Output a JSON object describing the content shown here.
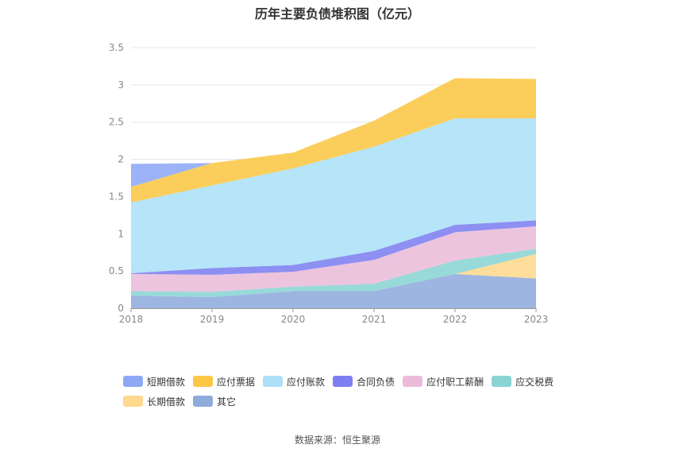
{
  "chart_data": {
    "type": "area",
    "stacked": true,
    "title": "历年主要负债堆积图（亿元）",
    "x": [
      "2018",
      "2019",
      "2020",
      "2021",
      "2022",
      "2023"
    ],
    "ylim": [
      0,
      3.5
    ],
    "yticks": [
      "0",
      "0.5",
      "1",
      "1.5",
      "2",
      "2.5",
      "3",
      "3.5"
    ],
    "grid": true,
    "legend_position": "bottom",
    "series": [
      {
        "name": "其它",
        "color": "#8fabdc",
        "values": [
          0.17,
          0.15,
          0.23,
          0.23,
          0.46,
          0.4
        ]
      },
      {
        "name": "长期借款",
        "color": "#ffd98e",
        "values": [
          0,
          0,
          0,
          0,
          0,
          0.33
        ]
      },
      {
        "name": "应交税费",
        "color": "#8ad4d4",
        "values": [
          0.06,
          0.07,
          0.06,
          0.1,
          0.18,
          0.07
        ]
      },
      {
        "name": "应付职工薪酬",
        "color": "#ebbcd9",
        "values": [
          0.23,
          0.23,
          0.2,
          0.32,
          0.38,
          0.3
        ]
      },
      {
        "name": "合同负债",
        "color": "#7d7ff0",
        "values": [
          0.01,
          0.09,
          0.09,
          0.12,
          0.1,
          0.08
        ]
      },
      {
        "name": "应付账款",
        "color": "#ace0f8",
        "values": [
          0.95,
          1.11,
          1.3,
          1.4,
          1.43,
          1.37
        ]
      },
      {
        "name": "应付票据",
        "color": "#fbc744",
        "values": [
          0.21,
          0.3,
          0.21,
          0.35,
          0.54,
          0.53
        ]
      },
      {
        "name": "短期借款",
        "color": "#8fa8f6",
        "values": [
          0.31,
          0,
          0,
          0,
          0,
          0
        ]
      }
    ]
  },
  "legend_order": [
    "短期借款",
    "应付票据",
    "应付账款",
    "合同负债",
    "应付职工薪酬",
    "应交税费",
    "长期借款",
    "其它"
  ],
  "source": "数据来源：恒生聚源"
}
